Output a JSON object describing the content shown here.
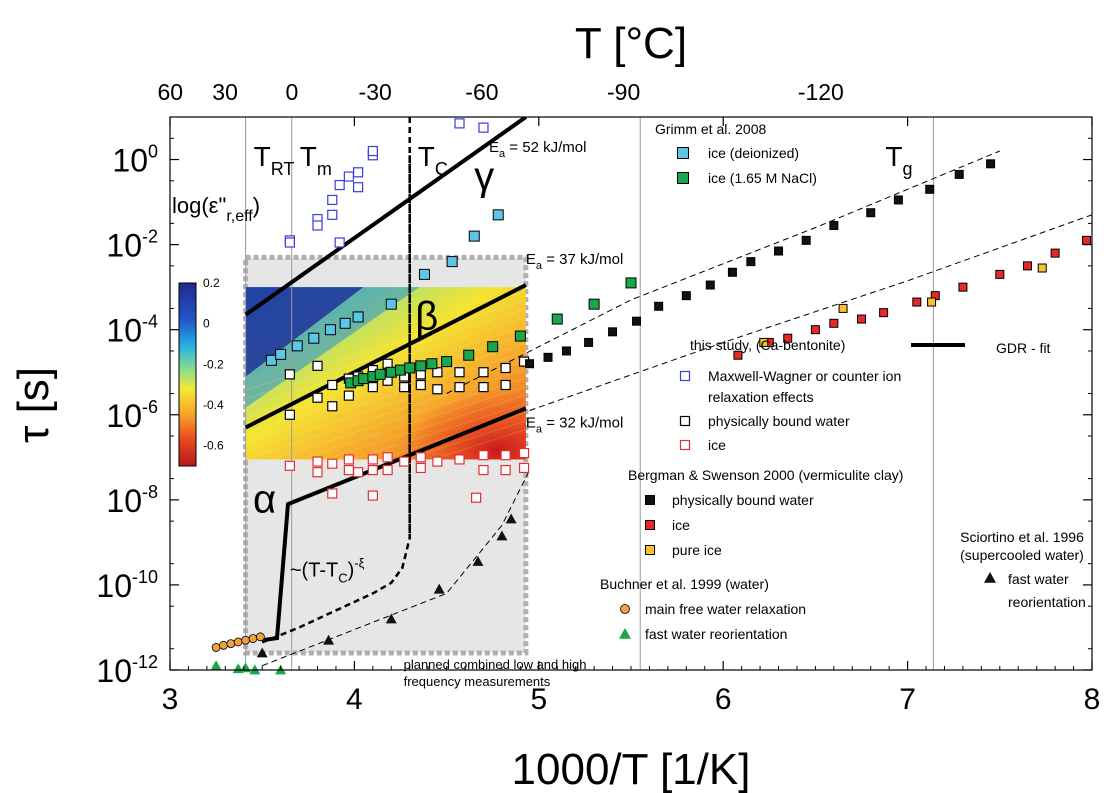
{
  "chart_data": {
    "type": "scatter",
    "x_axis": {
      "label": "1000/T [1/K]",
      "range": [
        3,
        8
      ],
      "ticks": [
        3,
        4,
        5,
        6,
        7,
        8
      ],
      "tick_labels": [
        "3",
        "4",
        "5",
        "6",
        "7",
        "8"
      ]
    },
    "top_axis": {
      "label": "T [°C]",
      "ticks_celsius": [
        60,
        30,
        0,
        -30,
        -60,
        -90,
        -120
      ],
      "tick_labels": [
        "60",
        "30",
        "0",
        "-30",
        "-60",
        "-90",
        "-120"
      ]
    },
    "y_axis": {
      "label": "τ [s]",
      "scale": "log",
      "range": [
        1e-12,
        10
      ],
      "tick_exponents": [
        0,
        -2,
        -4,
        -6,
        -8,
        -10,
        -12
      ],
      "tick_labels": [
        "10",
        "10",
        "10",
        "10",
        "10",
        "10",
        "10"
      ],
      "tick_superscripts": [
        "0",
        "-2",
        "-4",
        "-6",
        "-8",
        "-10",
        "-12"
      ]
    },
    "vertical_lines": [
      {
        "x": 3.41,
        "label": "T",
        "sub": "RT",
        "style": "thin"
      },
      {
        "x": 3.66,
        "label": "T",
        "sub": "m",
        "style": "thin"
      },
      {
        "x": 4.3,
        "label": "T",
        "sub": "C",
        "style": "dashed"
      },
      {
        "x": 5.55,
        "label": "",
        "sub": "",
        "style": "thin"
      },
      {
        "x": 7.14,
        "label": "T",
        "sub": "g",
        "style": "thin"
      }
    ],
    "heatmap": {
      "title": "log(ε\"r,eff)",
      "x_range": [
        3.41,
        4.93
      ],
      "y_range_log": [
        -7.05,
        -3.0
      ],
      "colorbar": {
        "min": -0.7,
        "max": 0.2,
        "ticks": [
          0.2,
          0,
          -0.2,
          -0.4,
          -0.6
        ],
        "tick_labels": [
          "0.2",
          "0",
          "-0.2",
          "-0.4",
          "-0.6"
        ]
      }
    },
    "planned_region": {
      "x_range": [
        3.41,
        4.93
      ],
      "y_range_log": [
        -11.6,
        -2.3
      ],
      "label_lines": [
        "planned combined low and high",
        "frequency measurements"
      ]
    },
    "greek_labels": [
      {
        "text": "γ",
        "x": 4.65,
        "y_log": -0.7
      },
      {
        "text": "β",
        "x": 4.33,
        "y_log": -4.0
      },
      {
        "text": "α",
        "x": 3.45,
        "y_log": -8.3
      }
    ],
    "activation_labels": [
      {
        "text": "E",
        "sub": "a",
        "rest": " = 52 kJ/mol",
        "x": 4.73,
        "y_log": 0.18
      },
      {
        "text": "E",
        "sub": "a",
        "rest": " = 37 kJ/mol",
        "x": 4.93,
        "y_log": -2.45
      },
      {
        "text": "E",
        "sub": "a",
        "rest": " = 32 kJ/mol",
        "x": 4.93,
        "y_log": -6.3
      }
    ],
    "annotations": [
      {
        "text": "~(T-T",
        "sub": "C",
        "rest": ")",
        "sup": "-ξ",
        "x": 3.65,
        "y_log": -9.8
      }
    ],
    "fits": [
      {
        "name": "γ fit",
        "style": "solid",
        "points": [
          [
            3.41,
            -3.65
          ],
          [
            4.93,
            1.0
          ]
        ]
      },
      {
        "name": "β fit",
        "style": "solid",
        "points": [
          [
            3.41,
            -6.3
          ],
          [
            4.93,
            -2.95
          ]
        ]
      },
      {
        "name": "α fit",
        "style": "solid",
        "points": [
          [
            3.5,
            -11.3
          ],
          [
            3.58,
            -11.25
          ],
          [
            3.64,
            -8.1
          ],
          [
            4.93,
            -5.85
          ]
        ]
      },
      {
        "name": "critical divergence",
        "style": "dashed",
        "points": [
          [
            3.5,
            -11.35
          ],
          [
            3.7,
            -11.0
          ],
          [
            3.9,
            -10.6
          ],
          [
            4.1,
            -10.2
          ],
          [
            4.2,
            -9.95
          ],
          [
            4.26,
            -9.6
          ],
          [
            4.3,
            -8.9
          ],
          [
            4.3,
            0.1
          ]
        ]
      },
      {
        "name": "ice trend",
        "style": "thin-dashed",
        "points": [
          [
            3.5,
            -11.9
          ],
          [
            4.5,
            -10.2
          ],
          [
            4.8,
            -8.6
          ],
          [
            4.95,
            -7.3
          ]
        ]
      },
      {
        "name": "bound water trend",
        "style": "thin-dashed",
        "points": [
          [
            4.5,
            -5.5
          ],
          [
            5.5,
            -3.3
          ],
          [
            6.5,
            -1.6
          ],
          [
            7.5,
            0.2
          ]
        ]
      },
      {
        "name": "ice trend (vermiculite)",
        "style": "thin-dashed",
        "points": [
          [
            4.95,
            -5.9
          ],
          [
            6.0,
            -4.3
          ],
          [
            7.0,
            -2.85
          ],
          [
            8.0,
            -1.3
          ]
        ]
      }
    ],
    "series": [
      {
        "name": "Maxwell-Wagner or counter ion relaxation effects",
        "marker": "square-open",
        "color": "#3b3bd8",
        "points": [
          [
            3.65,
            -1.9
          ],
          [
            3.65,
            -1.95
          ],
          [
            3.8,
            -1.4
          ],
          [
            3.8,
            -1.55
          ],
          [
            3.88,
            -0.95
          ],
          [
            3.88,
            -1.3
          ],
          [
            3.92,
            -0.6
          ],
          [
            3.92,
            -1.95
          ],
          [
            3.97,
            -0.4
          ],
          [
            4.02,
            -0.3
          ],
          [
            4.02,
            -0.65
          ],
          [
            4.1,
            0.1
          ],
          [
            4.1,
            0.2
          ],
          [
            4.57,
            0.85
          ],
          [
            4.7,
            0.75
          ]
        ]
      },
      {
        "name": "physically bound water",
        "marker": "square-open",
        "color": "#000000",
        "points": [
          [
            3.65,
            -5.05
          ],
          [
            3.65,
            -6.0
          ],
          [
            3.8,
            -4.85
          ],
          [
            3.8,
            -5.6
          ],
          [
            3.88,
            -5.3
          ],
          [
            3.88,
            -5.8
          ],
          [
            3.97,
            -5.15
          ],
          [
            3.97,
            -5.55
          ],
          [
            4.02,
            -5.1
          ],
          [
            4.1,
            -4.95
          ],
          [
            4.1,
            -5.35
          ],
          [
            4.18,
            -4.8
          ],
          [
            4.18,
            -5.2
          ],
          [
            4.27,
            -5.1
          ],
          [
            4.27,
            -5.35
          ],
          [
            4.36,
            -5.05
          ],
          [
            4.36,
            -5.3
          ],
          [
            4.45,
            -5.0
          ],
          [
            4.45,
            -5.4
          ],
          [
            4.57,
            -5.0
          ],
          [
            4.57,
            -5.35
          ],
          [
            4.7,
            -5.0
          ],
          [
            4.7,
            -5.35
          ],
          [
            4.82,
            -4.9
          ],
          [
            4.82,
            -5.3
          ],
          [
            4.92,
            -4.75
          ]
        ]
      },
      {
        "name": "ice",
        "marker": "square-open",
        "color": "#e03030",
        "points": [
          [
            3.65,
            -7.2
          ],
          [
            3.8,
            -7.1
          ],
          [
            3.8,
            -7.35
          ],
          [
            3.88,
            -7.15
          ],
          [
            3.97,
            -7.05
          ],
          [
            3.97,
            -7.3
          ],
          [
            4.02,
            -7.35
          ],
          [
            4.1,
            -7.05
          ],
          [
            4.1,
            -7.3
          ],
          [
            4.18,
            -7.0
          ],
          [
            4.18,
            -7.3
          ],
          [
            4.27,
            -7.1
          ],
          [
            4.36,
            -7.0
          ],
          [
            4.36,
            -7.25
          ],
          [
            4.45,
            -7.1
          ],
          [
            4.57,
            -7.05
          ],
          [
            4.7,
            -6.95
          ],
          [
            4.7,
            -7.3
          ],
          [
            4.82,
            -6.95
          ],
          [
            4.82,
            -7.3
          ],
          [
            4.92,
            -6.9
          ],
          [
            4.92,
            -7.25
          ],
          [
            3.88,
            -7.85
          ],
          [
            4.1,
            -7.9
          ],
          [
            4.66,
            -7.95
          ]
        ]
      },
      {
        "name": "ice (deionized)",
        "marker": "square-filled",
        "color": "#5bc6e8",
        "size": 10,
        "points": [
          [
            3.55,
            -4.72
          ],
          [
            3.6,
            -4.58
          ],
          [
            3.69,
            -4.38
          ],
          [
            3.78,
            -4.2
          ],
          [
            3.87,
            -4.0
          ],
          [
            3.95,
            -3.85
          ],
          [
            4.02,
            -3.7
          ],
          [
            4.2,
            -3.4
          ],
          [
            4.38,
            -2.7
          ],
          [
            4.53,
            -2.4
          ],
          [
            4.65,
            -1.8
          ],
          [
            4.78,
            -1.3
          ]
        ]
      },
      {
        "name": "ice (1.65 M NaCl)",
        "marker": "square-filled",
        "color": "#1aa64a",
        "size": 10,
        "points": [
          [
            3.98,
            -5.25
          ],
          [
            4.02,
            -5.2
          ],
          [
            4.05,
            -5.15
          ],
          [
            4.1,
            -5.1
          ],
          [
            4.14,
            -5.05
          ],
          [
            4.2,
            -5.0
          ],
          [
            4.25,
            -4.95
          ],
          [
            4.3,
            -4.9
          ],
          [
            4.36,
            -4.85
          ],
          [
            4.42,
            -4.8
          ],
          [
            4.5,
            -4.75
          ],
          [
            4.62,
            -4.6
          ],
          [
            4.75,
            -4.4
          ],
          [
            4.9,
            -4.15
          ],
          [
            5.1,
            -3.75
          ],
          [
            5.3,
            -3.4
          ],
          [
            5.5,
            -2.9
          ]
        ]
      },
      {
        "name": "physically bound water (vermiculite)",
        "marker": "square-filled",
        "color": "#111111",
        "size": 8,
        "points": [
          [
            4.95,
            -4.8
          ],
          [
            5.05,
            -4.65
          ],
          [
            5.15,
            -4.5
          ],
          [
            5.27,
            -4.3
          ],
          [
            5.4,
            -4.05
          ],
          [
            5.53,
            -3.8
          ],
          [
            5.65,
            -3.45
          ],
          [
            5.8,
            -3.2
          ],
          [
            5.93,
            -2.95
          ],
          [
            6.05,
            -2.65
          ],
          [
            6.15,
            -2.4
          ],
          [
            6.3,
            -2.15
          ],
          [
            6.45,
            -1.9
          ],
          [
            6.6,
            -1.55
          ],
          [
            6.8,
            -1.25
          ],
          [
            6.95,
            -0.95
          ],
          [
            7.12,
            -0.7
          ],
          [
            7.28,
            -0.35
          ],
          [
            7.45,
            -0.1
          ]
        ]
      },
      {
        "name": "ice (vermiculite)",
        "marker": "square-filled",
        "color": "#e82828",
        "size": 8,
        "points": [
          [
            6.08,
            -4.6
          ],
          [
            6.25,
            -4.3
          ],
          [
            6.35,
            -4.2
          ],
          [
            6.5,
            -4.0
          ],
          [
            6.6,
            -3.85
          ],
          [
            6.75,
            -3.75
          ],
          [
            6.87,
            -3.6
          ],
          [
            7.05,
            -3.35
          ],
          [
            7.15,
            -3.2
          ],
          [
            7.3,
            -3.0
          ],
          [
            7.5,
            -2.7
          ],
          [
            7.65,
            -2.5
          ],
          [
            7.8,
            -2.2
          ],
          [
            7.97,
            -1.9
          ]
        ]
      },
      {
        "name": "pure ice",
        "marker": "square-filled",
        "color": "#f5c232",
        "size": 8,
        "points": [
          [
            6.22,
            -4.3
          ],
          [
            6.65,
            -3.5
          ],
          [
            7.13,
            -3.35
          ],
          [
            7.73,
            -2.55
          ]
        ]
      },
      {
        "name": "fast water reorientation (Sciortino)",
        "marker": "triangle-filled",
        "color": "#111111",
        "size": 11,
        "points": [
          [
            3.5,
            -11.6
          ],
          [
            3.86,
            -11.3
          ],
          [
            4.2,
            -10.8
          ],
          [
            4.46,
            -10.1
          ],
          [
            4.67,
            -9.45
          ],
          [
            4.8,
            -8.85
          ],
          [
            4.85,
            -8.45
          ]
        ]
      },
      {
        "name": "main free water relaxation",
        "marker": "circle-filled",
        "color": "#f0a040",
        "size": 8,
        "points": [
          [
            3.25,
            -11.47
          ],
          [
            3.29,
            -11.42
          ],
          [
            3.33,
            -11.38
          ],
          [
            3.37,
            -11.34
          ],
          [
            3.41,
            -11.3
          ],
          [
            3.45,
            -11.26
          ],
          [
            3.49,
            -11.22
          ]
        ]
      },
      {
        "name": "fast water reorientation (Buchner)",
        "marker": "triangle-filled",
        "color": "#1aa64a",
        "size": 11,
        "points": [
          [
            3.25,
            -11.9
          ],
          [
            3.37,
            -11.97
          ],
          [
            3.41,
            -11.95
          ],
          [
            3.46,
            -12.0
          ],
          [
            3.6,
            -12.0
          ]
        ]
      }
    ],
    "legend": [
      {
        "text": "Grimm et al. 2008",
        "kind": "heading",
        "row": 0
      },
      {
        "text": "ice (deionized)",
        "marker": "square-filled",
        "color": "#5bc6e8",
        "row": 1
      },
      {
        "text": "ice (1.65 M NaCl)",
        "marker": "square-filled",
        "color": "#1aa64a",
        "row": 2
      },
      {
        "text": "this study, (Ca-bentonite)",
        "kind": "heading",
        "row": 3
      },
      {
        "text": "GDR - fit",
        "kind": "line",
        "row": 3
      },
      {
        "text": "Maxwell-Wagner or counter ion",
        "marker": "square-open",
        "color": "#3b3bd8",
        "row": 4
      },
      {
        "text": "relaxation effects",
        "kind": "continuation",
        "row": 5
      },
      {
        "text": "physically bound water",
        "marker": "square-open",
        "color": "#000000",
        "row": 6
      },
      {
        "text": "ice",
        "marker": "square-open",
        "color": "#e03030",
        "row": 7
      },
      {
        "text": "Bergman & Swenson 2000 (vermiculite clay)",
        "kind": "heading",
        "row": 8
      },
      {
        "text": "physically bound water",
        "marker": "square-filled",
        "color": "#111111",
        "row": 9
      },
      {
        "text": "ice",
        "marker": "square-filled",
        "color": "#e82828",
        "row": 10
      },
      {
        "text": "pure ice",
        "marker": "square-filled",
        "color": "#f5c232",
        "row": 11
      },
      {
        "text": "Buchner et al. 1999 (water)",
        "kind": "heading",
        "row": 12
      },
      {
        "text": "main free water relaxation",
        "marker": "circle-filled",
        "color": "#f0a040",
        "row": 13
      },
      {
        "text": "fast water reorientation",
        "marker": "triangle-filled",
        "color": "#1aa64a",
        "row": 14
      },
      {
        "text": "Sciortino et al. 1996",
        "kind": "heading2",
        "row": 15
      },
      {
        "text": "(supercooled water)",
        "kind": "heading2",
        "row": 16
      },
      {
        "text": "fast water",
        "marker": "triangle-filled",
        "color": "#111111",
        "kind": "s1",
        "row": 17
      },
      {
        "text": "reorientation",
        "kind": "s2",
        "row": 18
      }
    ]
  }
}
